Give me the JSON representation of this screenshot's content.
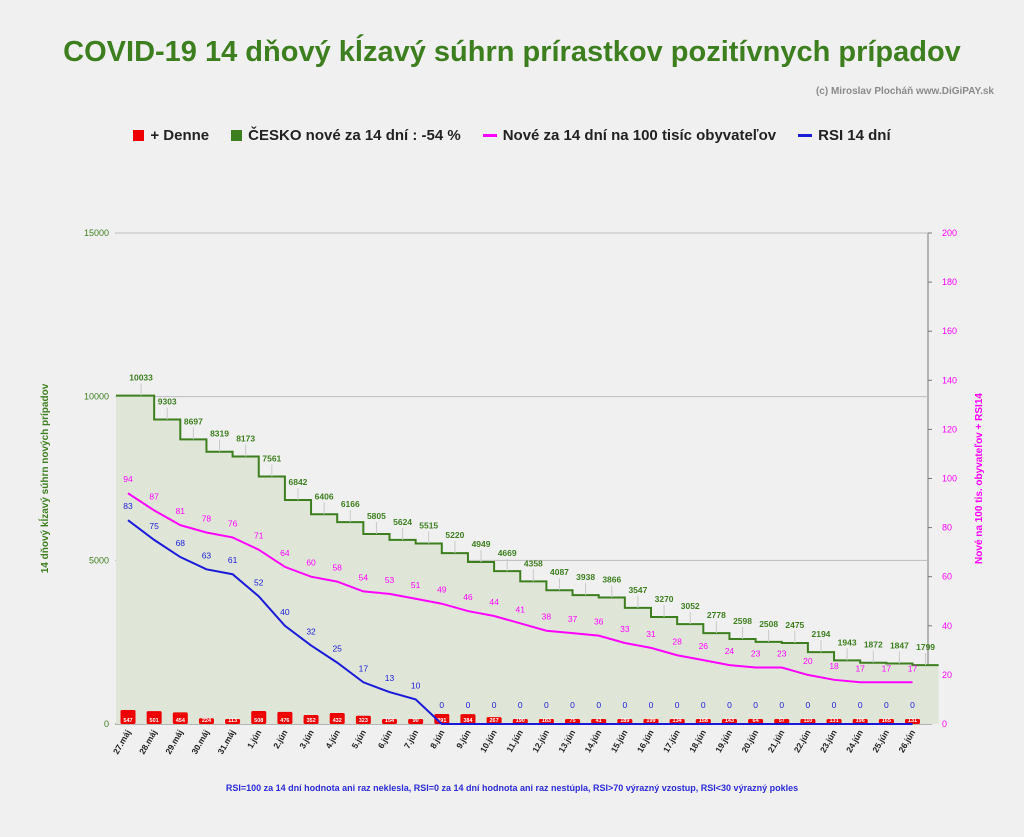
{
  "title": "COVID-19 14 dňový kĺzavý súhrn prírastkov pozitívnych prípadov",
  "credit": "(c) Miroslav Plocháň  www.DiGiPAY.sk",
  "legend": [
    {
      "label": "+ Denne",
      "color": "#ee0000",
      "kind": "square"
    },
    {
      "label": "ČESKO nové za 14 dní : -54 %",
      "color": "#3d7f1f",
      "kind": "square"
    },
    {
      "label": "Nové za 14 dní na 100 tisíc obyvateľov",
      "color": "#ff00ff",
      "kind": "line"
    },
    {
      "label": "RSI 14 dní",
      "color": "#1a1ad8",
      "kind": "line"
    }
  ],
  "footnote": "RSI=100 za 14 dní hodnota ani raz neklesla, RSI=0 za 14 dní hodnota ani raz nestúpla, RSI>70 výrazný  vzostup, RSI<30 výrazný pokles",
  "chart_data": {
    "type": "line",
    "categories": [
      "27.máj",
      "28.máj",
      "29.máj",
      "30.máj",
      "31.máj",
      "1.jún",
      "2.jún",
      "3.jún",
      "4.jún",
      "5.jún",
      "6.jún",
      "7.jún",
      "8.jún",
      "9.jún",
      "10.jún",
      "11.jún",
      "12.jún",
      "13.jún",
      "14.jún",
      "15.jún",
      "16.jún",
      "17.jún",
      "18.jún",
      "19.jún",
      "20.jún",
      "21.jún",
      "22.jún",
      "23.jún",
      "24.jún",
      "25.jún",
      "26.jún"
    ],
    "ylabel_left": "14 dňový kĺzavý  súhrn nových prípadov",
    "ylabel_right": "Nové na 100 tis. obyvateľov + RSI14",
    "ylim_left": [
      0,
      15000
    ],
    "ylim_right": [
      0,
      200
    ],
    "left_ticks": [
      0,
      5000,
      10000,
      15000
    ],
    "right_ticks": [
      0,
      20,
      40,
      60,
      80,
      100,
      120,
      140,
      160,
      180,
      200
    ],
    "grid": "horizontal",
    "legend_position": "top",
    "series": [
      {
        "name": "+ Denne",
        "type": "bar",
        "axis": "left",
        "color": "#ee0000",
        "values": [
          547,
          501,
          454,
          224,
          113,
          508,
          476,
          352,
          432,
          323,
          154,
          90,
          391,
          384,
          267,
          190,
          183,
          75,
          41,
          189,
          199,
          134,
          158,
          143,
          64,
          57,
          110,
          131,
          196,
          165,
          131
        ]
      },
      {
        "name": "ČESKO nové za 14 dní : -54 %",
        "type": "step",
        "axis": "left",
        "color": "#3d7f1f",
        "values": [
          10033,
          9303,
          8697,
          8319,
          8173,
          7561,
          6842,
          6406,
          6166,
          5805,
          5624,
          5515,
          5220,
          4949,
          4669,
          4358,
          4087,
          3938,
          3866,
          3547,
          3270,
          3052,
          2778,
          2598,
          2508,
          2475,
          2194,
          1943,
          1872,
          1847,
          1799
        ]
      },
      {
        "name": "Nové za 14 dní na 100 tisíc obyvateľov",
        "type": "line",
        "axis": "right",
        "color": "#ff00ff",
        "values": [
          94,
          87,
          81,
          78,
          76,
          71,
          64,
          60,
          58,
          54,
          53,
          51,
          49,
          46,
          44,
          41,
          38,
          37,
          36,
          33,
          31,
          28,
          26,
          24,
          23,
          23,
          20,
          18,
          17,
          17,
          17
        ]
      },
      {
        "name": "RSI 14 dní",
        "type": "line",
        "axis": "right",
        "color": "#1a1ad8",
        "values": [
          83,
          75,
          68,
          63,
          61,
          52,
          40,
          32,
          25,
          17,
          13,
          10,
          0,
          0,
          0,
          0,
          0,
          0,
          0,
          0,
          0,
          0,
          0,
          0,
          0,
          0,
          0,
          0,
          0,
          0,
          0
        ]
      }
    ]
  }
}
